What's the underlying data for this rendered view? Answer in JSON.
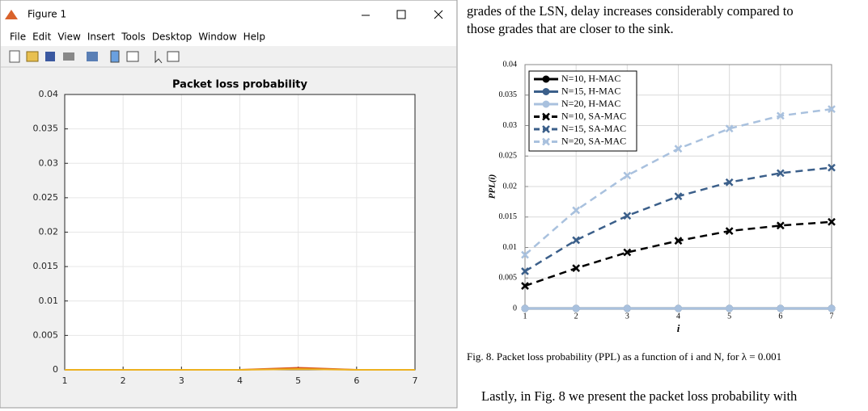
{
  "window": {
    "title": "Figure 1",
    "menu": [
      "File",
      "Edit",
      "View",
      "Insert",
      "Tools",
      "Desktop",
      "Window",
      "Help"
    ]
  },
  "paper": {
    "top_lines": [
      "grades of the LSN, delay increases considerably compared to",
      "those grades that are closer to the sink."
    ],
    "caption": "Fig. 8. Packet loss probability (PPL) as a function of i and N, for λ = 0.001",
    "bottom_line": "Lastly, in Fig. 8 we present the packet loss probability with"
  },
  "chart_data": [
    {
      "type": "line",
      "title": "Packet loss probability",
      "x": [
        1,
        2,
        3,
        4,
        5,
        6,
        7
      ],
      "series": [
        {
          "color": "#d95319",
          "values": [
            0,
            0,
            0,
            0,
            0.0003,
            0,
            0
          ]
        },
        {
          "color": "#edb120",
          "values": [
            0,
            0,
            0,
            0,
            0.0001,
            0,
            0
          ]
        }
      ],
      "xlim": [
        1,
        7
      ],
      "xticks": [
        1,
        2,
        3,
        4,
        5,
        6,
        7
      ],
      "ylim": [
        0,
        0.04
      ],
      "yticks": [
        0,
        0.005,
        0.01,
        0.015,
        0.02,
        0.025,
        0.03,
        0.035,
        0.04
      ],
      "grid": true
    },
    {
      "type": "line",
      "x_label": "i",
      "y_label": "PPL(i)",
      "x": [
        1,
        2,
        3,
        4,
        5,
        6,
        7
      ],
      "series": [
        {
          "name": "N=10, H-MAC",
          "color": "#000000",
          "marker": "o",
          "linestyle": "solid",
          "values": [
            0,
            0,
            0,
            0,
            0,
            0,
            0
          ]
        },
        {
          "name": "N=15, H-MAC",
          "color": "#3b5f8a",
          "marker": "o",
          "linestyle": "solid",
          "values": [
            0,
            0,
            0,
            0,
            0,
            0,
            0
          ]
        },
        {
          "name": "N=20, H-MAC",
          "color": "#a9c1de",
          "marker": "o",
          "linestyle": "solid",
          "values": [
            0,
            0,
            0,
            0,
            0,
            0,
            0
          ]
        },
        {
          "name": "N=10, SA-MAC",
          "color": "#000000",
          "marker": "x",
          "linestyle": "dashed",
          "values": [
            0.0037,
            0.0066,
            0.0092,
            0.0111,
            0.0127,
            0.0136,
            0.0142
          ]
        },
        {
          "name": "N=15, SA-MAC",
          "color": "#3b5f8a",
          "marker": "x",
          "linestyle": "dashed",
          "values": [
            0.0061,
            0.0112,
            0.0152,
            0.0184,
            0.0207,
            0.0222,
            0.0231
          ]
        },
        {
          "name": "N=20, SA-MAC",
          "color": "#a9c1de",
          "marker": "x",
          "linestyle": "dashed",
          "values": [
            0.0088,
            0.0161,
            0.0218,
            0.0262,
            0.0295,
            0.0316,
            0.0327
          ]
        }
      ],
      "xlim": [
        1,
        7
      ],
      "xticks": [
        1,
        2,
        3,
        4,
        5,
        6,
        7
      ],
      "ylim": [
        0,
        0.04
      ],
      "yticks": [
        0,
        0.005,
        0.01,
        0.015,
        0.02,
        0.025,
        0.03,
        0.035,
        0.04
      ],
      "grid": true,
      "legend": "upper left"
    }
  ]
}
